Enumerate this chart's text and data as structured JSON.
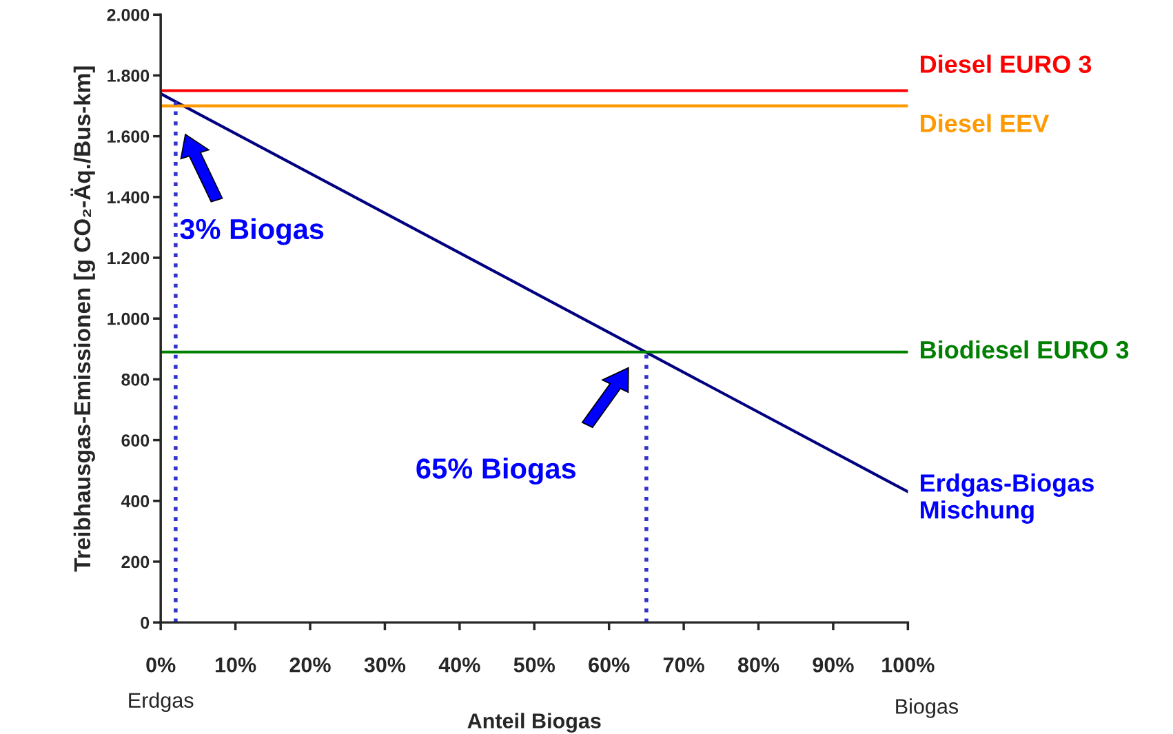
{
  "chart_data": {
    "type": "line",
    "xlabel": "Anteil Biogas",
    "ylabel": "Treibhausgas-Emissionen [g CO₂-Äq./Bus-km]",
    "series": [
      {
        "name": "Erdgas-Biogas\nMischung",
        "color": "#000080",
        "x": [
          0,
          100
        ],
        "values": [
          1740,
          430
        ]
      }
    ],
    "ref_lines": [
      {
        "axis": "y",
        "value": 1750,
        "label": "Diesel EURO 3",
        "color": "#ff0000"
      },
      {
        "axis": "y",
        "value": 1700,
        "label": "Diesel EEV",
        "color": "#ff9900"
      },
      {
        "axis": "y",
        "value": 890,
        "label": "Biodiesel EURO 3",
        "color": "#008000"
      },
      {
        "axis": "x",
        "value": 2,
        "color": "#3333cc",
        "line_style": "dotted"
      },
      {
        "axis": "x",
        "value": 65,
        "color": "#3333cc",
        "line_style": "dotted"
      }
    ],
    "annotations": [
      "3% Biogas",
      "65% Biogas",
      "Erdgas",
      "Biogas"
    ],
    "xlim": [
      0,
      100
    ],
    "ylim": [
      0,
      2000
    ],
    "xticks": [
      {
        "value": 0,
        "label": "0%"
      },
      {
        "value": 10,
        "label": "10%"
      },
      {
        "value": 20,
        "label": "20%"
      },
      {
        "value": 30,
        "label": "30%"
      },
      {
        "value": 40,
        "label": "40%"
      },
      {
        "value": 50,
        "label": "50%"
      },
      {
        "value": 60,
        "label": "60%"
      },
      {
        "value": 70,
        "label": "70%"
      },
      {
        "value": 80,
        "label": "80%"
      },
      {
        "value": 90,
        "label": "90%"
      },
      {
        "value": 100,
        "label": "100%"
      }
    ],
    "yticks": [
      0,
      200,
      400,
      600,
      800,
      {
        "value": 1000,
        "label": "1.000"
      },
      {
        "value": 1200,
        "label": "1.200"
      },
      {
        "value": 1400,
        "label": "1.400"
      },
      {
        "value": 1600,
        "label": "1.600"
      },
      {
        "value": 1800,
        "label": "1.800"
      },
      {
        "value": 2000,
        "label": "2.000"
      }
    ],
    "grid": false,
    "legend": false,
    "marker": "none",
    "line_style": "solid"
  }
}
